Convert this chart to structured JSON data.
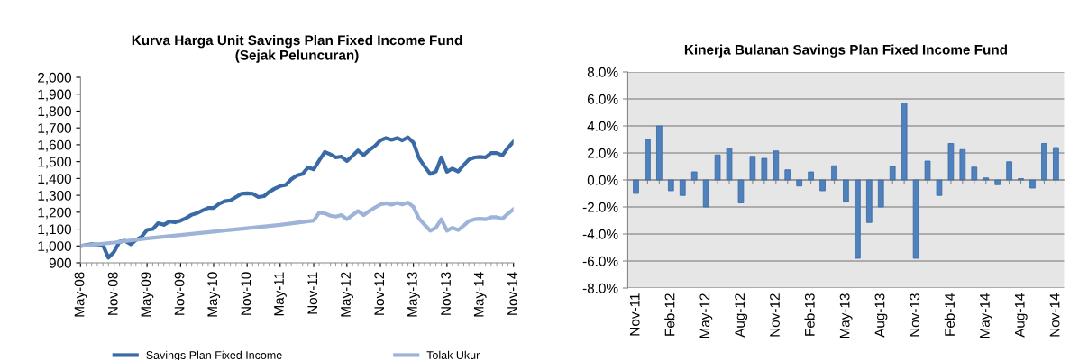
{
  "chart_data": [
    {
      "type": "line",
      "title": "Kurva Harga Unit Savings Plan Fixed Income Fund\n(Sejak Peluncuran)",
      "legend": "bottom",
      "grid": false,
      "marker": "none",
      "line_style": "solid",
      "x": [
        "2008-05",
        "2008-06",
        "2008-07",
        "2008-08",
        "2008-09",
        "2008-10",
        "2008-11",
        "2008-12",
        "2009-01",
        "2009-02",
        "2009-03",
        "2009-04",
        "2009-05",
        "2009-06",
        "2009-07",
        "2009-08",
        "2009-09",
        "2009-10",
        "2009-11",
        "2009-12",
        "2010-01",
        "2010-02",
        "2010-03",
        "2010-04",
        "2010-05",
        "2010-06",
        "2010-07",
        "2010-08",
        "2010-09",
        "2010-10",
        "2010-11",
        "2010-12",
        "2011-01",
        "2011-02",
        "2011-03",
        "2011-04",
        "2011-05",
        "2011-06",
        "2011-07",
        "2011-08",
        "2011-09",
        "2011-10",
        "2011-11",
        "2011-12",
        "2012-01",
        "2012-02",
        "2012-03",
        "2012-04",
        "2012-05",
        "2012-06",
        "2012-07",
        "2012-08",
        "2012-09",
        "2012-10",
        "2012-11",
        "2012-12",
        "2013-01",
        "2013-02",
        "2013-03",
        "2013-04",
        "2013-05",
        "2013-06",
        "2013-07",
        "2013-08",
        "2013-09",
        "2013-10",
        "2013-11",
        "2013-12",
        "2014-01",
        "2014-02",
        "2014-03",
        "2014-04",
        "2014-05",
        "2014-06",
        "2014-07",
        "2014-08",
        "2014-09",
        "2014-10",
        "2014-11"
      ],
      "series": [
        {
          "name": "Savings Plan Fixed Income",
          "color": "#3a6aa6",
          "values": [
            1000,
            1005,
            1010,
            1008,
            1005,
            930,
            965,
            1025,
            1030,
            1010,
            1035,
            1055,
            1095,
            1100,
            1135,
            1125,
            1145,
            1140,
            1150,
            1165,
            1185,
            1195,
            1210,
            1225,
            1225,
            1250,
            1265,
            1270,
            1290,
            1310,
            1312,
            1310,
            1290,
            1295,
            1320,
            1340,
            1355,
            1362,
            1395,
            1418,
            1427,
            1466,
            1454,
            1507,
            1557,
            1543,
            1525,
            1530,
            1504,
            1534,
            1566,
            1539,
            1569,
            1592,
            1626,
            1640,
            1629,
            1640,
            1626,
            1644,
            1613,
            1520,
            1472,
            1427,
            1441,
            1525,
            1440,
            1459,
            1441,
            1480,
            1512,
            1525,
            1528,
            1525,
            1551,
            1551,
            1537,
            1582,
            1619
          ]
        },
        {
          "name": "Tolak Ukur",
          "color": "#9db3d8",
          "x": [
            "2008-05",
            "2008-11",
            "2009-05",
            "2009-11",
            "2010-05",
            "2010-11",
            "2011-05",
            "2011-11",
            "2011-12",
            "2012-01",
            "2012-02",
            "2012-03",
            "2012-04",
            "2012-05",
            "2012-06",
            "2012-07",
            "2012-08",
            "2012-09",
            "2012-10",
            "2012-11",
            "2012-12",
            "2013-01",
            "2013-02",
            "2013-03",
            "2013-04",
            "2013-05",
            "2013-06",
            "2013-07",
            "2013-08",
            "2013-09",
            "2013-10",
            "2013-11",
            "2013-12",
            "2014-01",
            "2014-02",
            "2014-03",
            "2014-04",
            "2014-05",
            "2014-06",
            "2014-07",
            "2014-08",
            "2014-09",
            "2014-10",
            "2014-11"
          ],
          "values": [
            1000,
            1020,
            1045,
            1065,
            1085,
            1105,
            1125,
            1150,
            1197,
            1193,
            1179,
            1174,
            1183,
            1158,
            1183,
            1207,
            1183,
            1207,
            1227,
            1246,
            1253,
            1245,
            1255,
            1245,
            1257,
            1232,
            1161,
            1126,
            1090,
            1108,
            1158,
            1090,
            1108,
            1094,
            1121,
            1147,
            1158,
            1161,
            1158,
            1170,
            1170,
            1161,
            1191,
            1218
          ]
        }
      ],
      "xlim": [
        "2008-05",
        "2014-11"
      ],
      "xticks": [
        {
          "value": "2008-05",
          "label": "May-08"
        },
        {
          "value": "2008-11",
          "label": "Nov-08"
        },
        {
          "value": "2009-05",
          "label": "May-09"
        },
        {
          "value": "2009-11",
          "label": "Nov-09"
        },
        {
          "value": "2010-05",
          "label": "May-10"
        },
        {
          "value": "2010-11",
          "label": "Nov-10"
        },
        {
          "value": "2011-05",
          "label": "May-11"
        },
        {
          "value": "2011-11",
          "label": "Nov-11"
        },
        {
          "value": "2012-05",
          "label": "May-12"
        },
        {
          "value": "2012-11",
          "label": "Nov-12"
        },
        {
          "value": "2013-05",
          "label": "May-13"
        },
        {
          "value": "2013-11",
          "label": "Nov-13"
        },
        {
          "value": "2014-05",
          "label": "May-14"
        },
        {
          "value": "2014-11",
          "label": "Nov-14"
        }
      ],
      "ylim": [
        900,
        2000
      ],
      "yticks": [
        {
          "value": 900,
          "label": "900"
        },
        {
          "value": 1000,
          "label": "1,000"
        },
        {
          "value": 1100,
          "label": "1,100"
        },
        {
          "value": 1200,
          "label": "1,200"
        },
        {
          "value": 1300,
          "label": "1,300"
        },
        {
          "value": 1400,
          "label": "1,400"
        },
        {
          "value": 1500,
          "label": "1,500"
        },
        {
          "value": 1600,
          "label": "1,600"
        },
        {
          "value": 1700,
          "label": "1,700"
        },
        {
          "value": 1800,
          "label": "1,800"
        },
        {
          "value": 1900,
          "label": "1,900"
        },
        {
          "value": 2000,
          "label": "2,000"
        }
      ]
    },
    {
      "type": "bar",
      "title": "Kinerja Bulanan Savings Plan Fixed Income Fund",
      "grid": "y",
      "legend": false,
      "categories": [
        "Nov-11",
        null,
        null,
        "Feb-12",
        null,
        null,
        "May-12",
        null,
        null,
        "Aug-12",
        null,
        null,
        "Nov-12",
        null,
        null,
        "Feb-13",
        null,
        null,
        "May-13",
        null,
        null,
        "Aug-13",
        null,
        null,
        "Nov-13",
        null,
        null,
        "Feb-14",
        null,
        null,
        "May-14",
        null,
        null,
        "Aug-14",
        null,
        null,
        "Nov-14"
      ],
      "series": [
        {
          "color": "#4f81bd",
          "values": [
            -1.0,
            3.0,
            4.0,
            -0.8,
            -1.15,
            0.6,
            -2.0,
            1.85,
            2.35,
            -1.7,
            1.75,
            1.6,
            2.15,
            0.75,
            -0.45,
            0.6,
            -0.8,
            1.05,
            -1.6,
            -5.8,
            -3.15,
            -2.0,
            1.0,
            5.7,
            -5.8,
            1.4,
            -1.15,
            2.7,
            2.25,
            0.95,
            0.15,
            -0.35,
            1.35,
            0.1,
            -0.6,
            2.7,
            2.4
          ]
        }
      ],
      "ylim": [
        -8,
        8
      ],
      "yticks": [
        {
          "value": -8,
          "label": "-8.0%"
        },
        {
          "value": -6,
          "label": "-6.0%"
        },
        {
          "value": -4,
          "label": "-4.0%"
        },
        {
          "value": -2,
          "label": "-2.0%"
        },
        {
          "value": 0,
          "label": "0.0%"
        },
        {
          "value": 2,
          "label": "2.0%"
        },
        {
          "value": 4,
          "label": "4.0%"
        },
        {
          "value": 6,
          "label": "6.0%"
        },
        {
          "value": 8,
          "label": "8.0%"
        }
      ]
    }
  ]
}
